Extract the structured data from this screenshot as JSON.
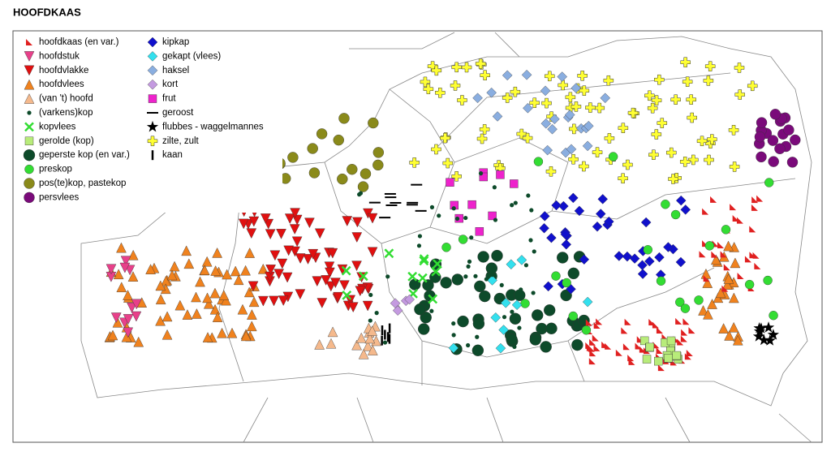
{
  "header": {
    "title": "HOOFDKAAS"
  },
  "legend": {
    "columns": [
      [
        "hoofdkaas (en var.)",
        "hoofdstuk",
        "hoofdvlakke",
        "hoofdvlees",
        "(van 't) hoofd",
        "(varkens)kop",
        "kopvlees",
        "gerolde (kop)",
        "geperste kop (en var.)",
        "preskop",
        "pos(te)kop, pastekop",
        "persvlees"
      ],
      [
        "kipkap",
        "gekapt (vlees)",
        "haksel",
        "kort",
        "frut",
        "geroost",
        "flubbes - waggelmannes",
        "zilte, zult",
        "kaan"
      ]
    ]
  }
}
